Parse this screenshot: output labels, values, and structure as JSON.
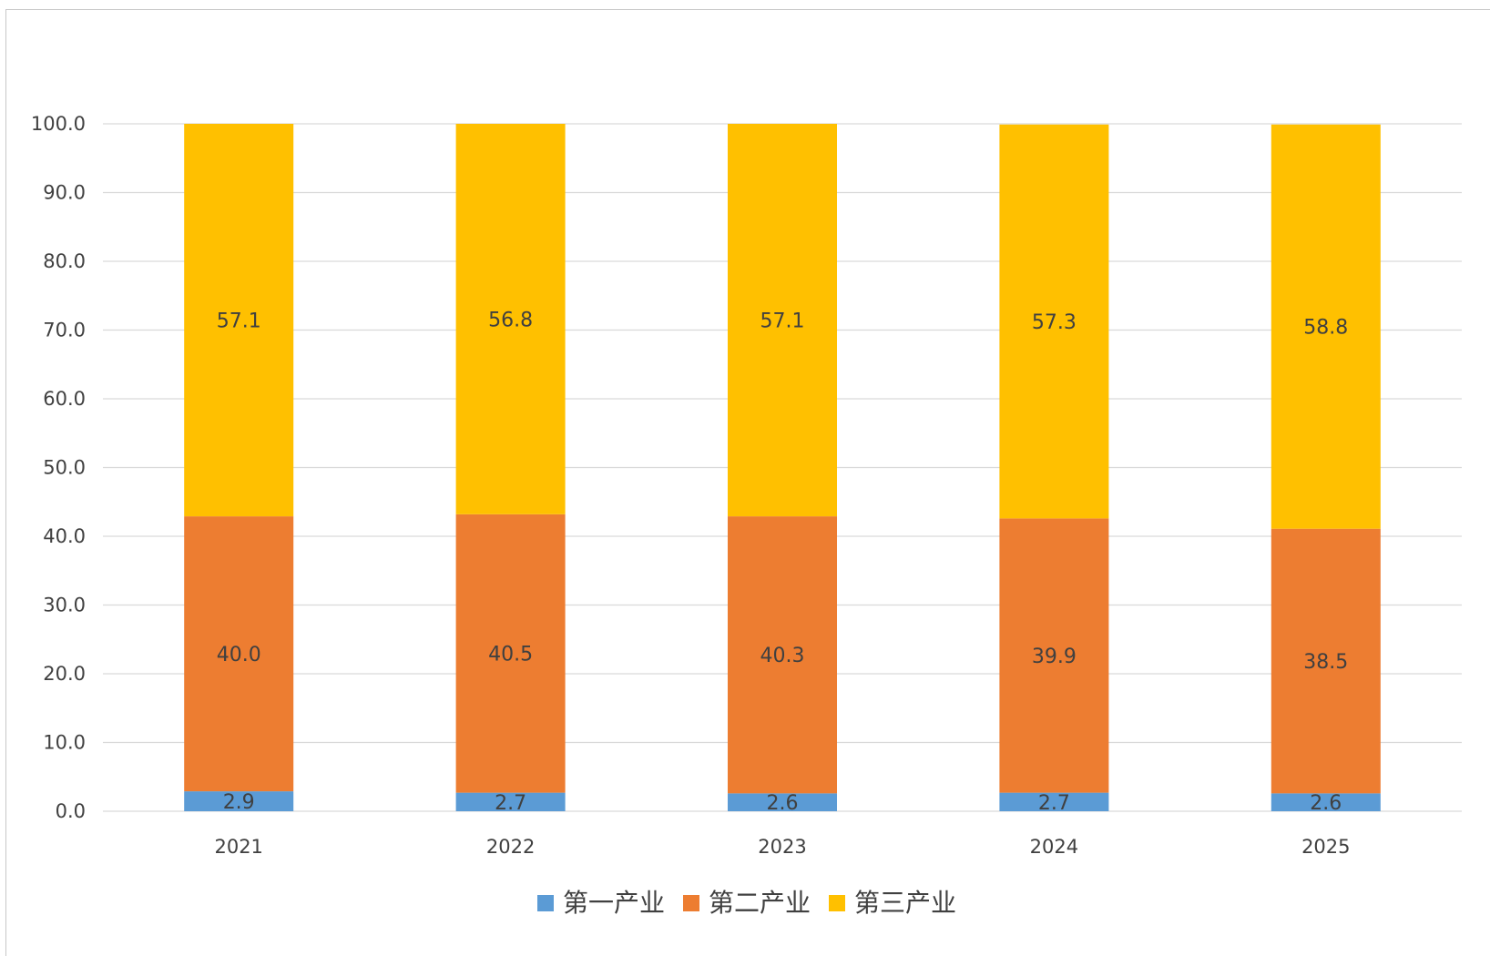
{
  "chart_data": {
    "type": "bar",
    "stacked": true,
    "categories": [
      "2021",
      "2022",
      "2023",
      "2024",
      "2025"
    ],
    "series": [
      {
        "name": "第一产业",
        "color": "#5b9bd5",
        "values": [
          2.9,
          2.7,
          2.6,
          2.7,
          2.6
        ]
      },
      {
        "name": "第二产业",
        "color": "#ed7d31",
        "values": [
          40.0,
          40.5,
          40.3,
          39.9,
          38.5
        ]
      },
      {
        "name": "第三产业",
        "color": "#ffc000",
        "values": [
          57.1,
          56.8,
          57.1,
          57.3,
          58.8
        ]
      }
    ],
    "data_labels": [
      [
        "2.9",
        "2.7",
        "2.6",
        "2.7",
        "2.6"
      ],
      [
        "40.0",
        "40.5",
        "40.3",
        "39.9",
        "38.5"
      ],
      [
        "57.1",
        "56.8",
        "57.1",
        "57.3",
        "58.8"
      ]
    ],
    "y_ticks": [
      "0.0",
      "10.0",
      "20.0",
      "30.0",
      "40.0",
      "50.0",
      "60.0",
      "70.0",
      "80.0",
      "90.0",
      "100.0"
    ],
    "ylim": [
      0,
      100
    ],
    "grid": true,
    "legend_position": "bottom",
    "title": "",
    "xlabel": "",
    "ylabel": ""
  }
}
